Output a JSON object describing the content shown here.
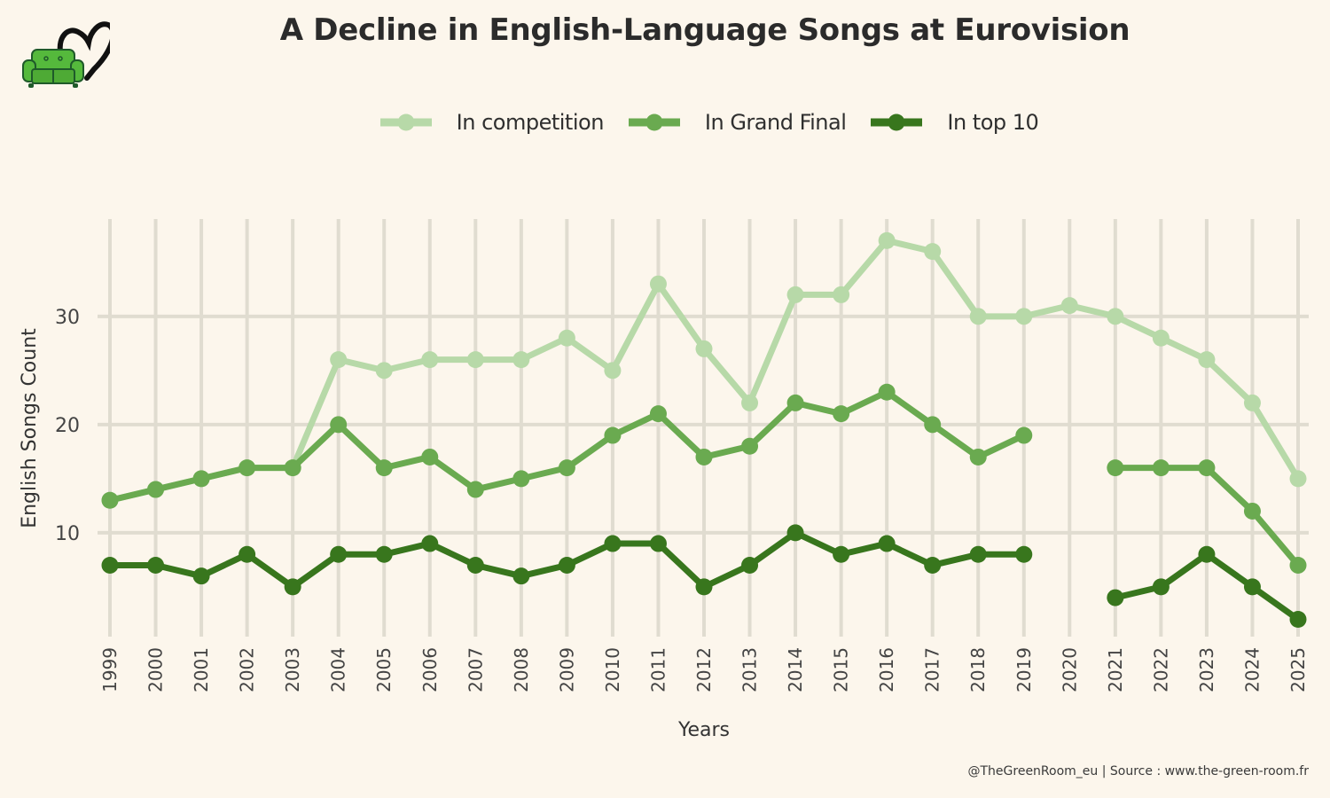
{
  "logo": {
    "icon": "green-sofa-heart-logo"
  },
  "footer": "@TheGreenRoom_eu | Source : www.the-green-room.fr",
  "colors": {
    "background": "#fcf6ec",
    "grid": "#e0dcd0",
    "in_competition": "#b7d9a8",
    "in_grand_final": "#6aaa50",
    "in_top10": "#38761d",
    "text": "#333333"
  },
  "chart_data": {
    "type": "line",
    "title": "A Decline in English-Language Songs at Eurovision",
    "xlabel": "Years",
    "ylabel": "English Songs Count",
    "x": [
      1999,
      2000,
      2001,
      2002,
      2003,
      2004,
      2005,
      2006,
      2007,
      2008,
      2009,
      2010,
      2011,
      2012,
      2013,
      2014,
      2015,
      2016,
      2017,
      2018,
      2019,
      2020,
      2021,
      2022,
      2023,
      2024,
      2025
    ],
    "x_tick_labels": [
      "1999",
      "2000",
      "2001",
      "2002",
      "2003",
      "2004",
      "2005",
      "2006",
      "2007",
      "2008",
      "2009",
      "2010",
      "2011",
      "2012",
      "2013",
      "2014",
      "2015",
      "2016",
      "2017",
      "2018",
      "2019",
      "2020",
      "2021",
      "2022",
      "2023",
      "2024",
      "2025"
    ],
    "y_ticks": [
      10,
      20,
      30
    ],
    "y_tick_labels": [
      "10",
      "20",
      "30"
    ],
    "ylim": [
      0.4,
      39
    ],
    "grid": true,
    "legend_position": "top-center",
    "series": [
      {
        "name": "In competition",
        "color": "#b7d9a8",
        "values": [
          13,
          14,
          15,
          16,
          16,
          26,
          25,
          26,
          26,
          26,
          28,
          25,
          33,
          27,
          22,
          32,
          32,
          37,
          36,
          30,
          30,
          31,
          30,
          28,
          26,
          22,
          15
        ]
      },
      {
        "name": "In Grand Final",
        "color": "#6aaa50",
        "values": [
          13,
          14,
          15,
          16,
          16,
          20,
          16,
          17,
          14,
          15,
          16,
          19,
          21,
          17,
          18,
          22,
          21,
          23,
          20,
          17,
          19,
          null,
          16,
          16,
          16,
          12,
          7
        ]
      },
      {
        "name": "In top 10",
        "color": "#38761d",
        "values": [
          7,
          7,
          6,
          8,
          5,
          8,
          8,
          9,
          7,
          6,
          7,
          9,
          9,
          5,
          7,
          10,
          8,
          9,
          7,
          8,
          8,
          null,
          4,
          5,
          8,
          5,
          2
        ]
      }
    ]
  }
}
